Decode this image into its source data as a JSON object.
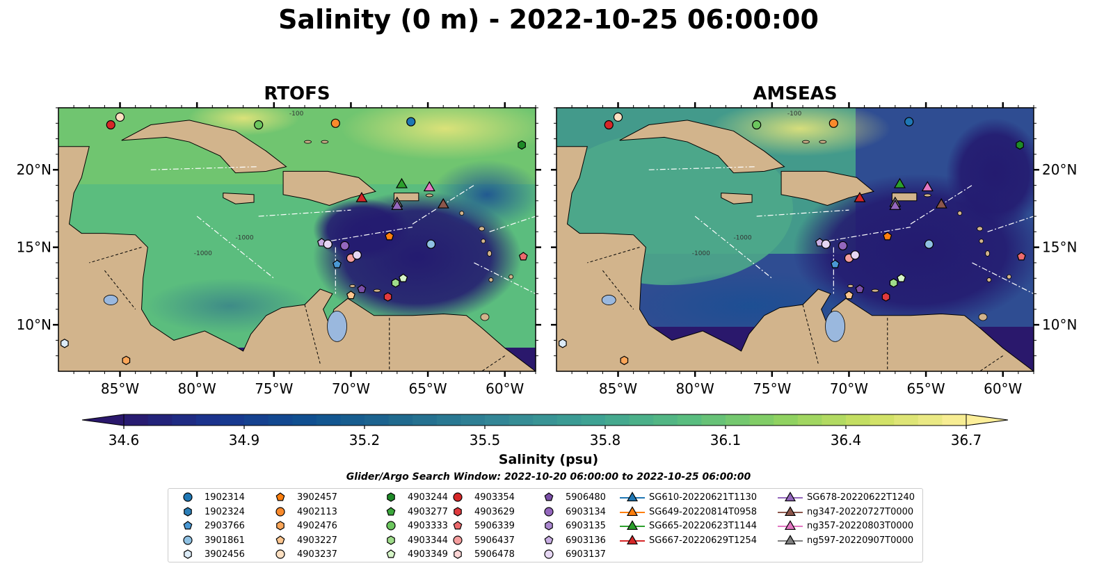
{
  "title": "Salinity (0 m) - 2022-10-25 06:00:00",
  "panels": [
    {
      "title": "RTOFS"
    },
    {
      "title": "AMSEAS"
    }
  ],
  "map": {
    "lon_range": [
      -89,
      -58
    ],
    "lat_range": [
      7,
      24
    ],
    "lon_ticks": [
      "85°W",
      "80°W",
      "75°W",
      "70°W",
      "65°W",
      "60°W"
    ],
    "lat_ticks": [
      "20°N",
      "15°N",
      "10°N"
    ],
    "contour_labels": [
      "-100",
      "-1000"
    ],
    "land_color": "#d2b48c",
    "lake_color": "#9ab8de"
  },
  "colorbar": {
    "label": "Salinity (psu)",
    "ticks": [
      "34.6",
      "34.9",
      "35.2",
      "35.5",
      "35.8",
      "36.1",
      "36.4",
      "36.7"
    ],
    "range": [
      34.6,
      36.7
    ],
    "colormap": "haline",
    "colors": [
      "#2a186c",
      "#19358f",
      "#0f5190",
      "#216b8e",
      "#338696",
      "#3ea293",
      "#57bc80",
      "#8bd161",
      "#cde062",
      "#fdef9a"
    ]
  },
  "search_window": "Glider/Argo Search Window: 2022-10-20 06:00:00 to 2022-10-25 06:00:00",
  "legend": {
    "columns": [
      [
        {
          "label": "1902314",
          "marker": "circle",
          "color": "#1f77b4"
        },
        {
          "label": "1902324",
          "marker": "hexagon",
          "color": "#2c7fb8"
        },
        {
          "label": "2903766",
          "marker": "pentagon",
          "color": "#4a98d4"
        },
        {
          "label": "3901861",
          "marker": "circle",
          "color": "#8fc1e3"
        },
        {
          "label": "3902456",
          "marker": "hexagon",
          "color": "#dcebf7"
        }
      ],
      [
        {
          "label": "3902457",
          "marker": "pentagon",
          "color": "#ff7f0e"
        },
        {
          "label": "4902113",
          "marker": "circle",
          "color": "#f98a2c"
        },
        {
          "label": "4902476",
          "marker": "hexagon",
          "color": "#fba659"
        },
        {
          "label": "4903227",
          "marker": "pentagon",
          "color": "#fdc68f"
        },
        {
          "label": "4903237",
          "marker": "circle",
          "color": "#fde0c2"
        }
      ],
      [
        {
          "label": "4903244",
          "marker": "hexagon",
          "color": "#1e8a28"
        },
        {
          "label": "4903277",
          "marker": "pentagon",
          "color": "#3ca83c"
        },
        {
          "label": "4903333",
          "marker": "circle",
          "color": "#6cc65e"
        },
        {
          "label": "4903344",
          "marker": "hexagon",
          "color": "#9fdc8a"
        },
        {
          "label": "4903349",
          "marker": "pentagon",
          "color": "#d6f5c8"
        }
      ],
      [
        {
          "label": "4903354",
          "marker": "circle",
          "color": "#d62728"
        },
        {
          "label": "4903629",
          "marker": "hexagon",
          "color": "#e03a3e"
        },
        {
          "label": "5906339",
          "marker": "pentagon",
          "color": "#ec6a6d"
        },
        {
          "label": "5906437",
          "marker": "circle",
          "color": "#f59e9e"
        },
        {
          "label": "5906478",
          "marker": "hexagon",
          "color": "#fcd5d5"
        }
      ],
      [
        {
          "label": "5906480",
          "marker": "pentagon",
          "color": "#7b4fa8"
        },
        {
          "label": "6903134",
          "marker": "circle",
          "color": "#9467bd"
        },
        {
          "label": "6903135",
          "marker": "hexagon",
          "color": "#ab88d0"
        },
        {
          "label": "6903136",
          "marker": "pentagon",
          "color": "#c8aee3"
        },
        {
          "label": "6903137",
          "marker": "circle",
          "color": "#e6d7f3"
        }
      ],
      [
        {
          "label": "SG610-20220621T1130",
          "marker": "triangle",
          "color": "#1f77b4"
        },
        {
          "label": "SG649-20220814T0958",
          "marker": "triangle",
          "color": "#ff7f0e"
        },
        {
          "label": "SG665-20220623T1144",
          "marker": "triangle",
          "color": "#2ca02c"
        },
        {
          "label": "SG667-20220629T1254",
          "marker": "triangle",
          "color": "#d62728"
        }
      ],
      [
        {
          "label": "SG678-20220622T1240",
          "marker": "triangle",
          "color": "#9467bd"
        },
        {
          "label": "ng347-20220727T0000",
          "marker": "triangle",
          "color": "#8c564b"
        },
        {
          "label": "ng357-20220803T0000",
          "marker": "triangle",
          "color": "#e377c2"
        },
        {
          "label": "ng597-20220907T0000",
          "marker": "triangle",
          "color": "#7f7f7f"
        }
      ]
    ]
  },
  "observations": [
    {
      "id": "4903354",
      "lon": -85.6,
      "lat": 22.9
    },
    {
      "id": "4903237",
      "lon": -85.0,
      "lat": 23.4
    },
    {
      "id": "4903333",
      "lon": -76.0,
      "lat": 22.9
    },
    {
      "id": "4902113",
      "lon": -71.0,
      "lat": 23.0
    },
    {
      "id": "1902314",
      "lon": -66.1,
      "lat": 23.1
    },
    {
      "id": "4903244",
      "lon": -58.9,
      "lat": 21.6
    },
    {
      "id": "3902457",
      "lon": -67.5,
      "lat": 15.7
    },
    {
      "id": "3901861",
      "lon": -64.8,
      "lat": 15.2
    },
    {
      "id": "5906339",
      "lon": -58.8,
      "lat": 14.4
    },
    {
      "id": "6903136",
      "lon": -71.9,
      "lat": 15.3
    },
    {
      "id": "6903137",
      "lon": -71.5,
      "lat": 15.2
    },
    {
      "id": "6903134",
      "lon": -70.4,
      "lat": 15.1
    },
    {
      "id": "5906437",
      "lon": -70.0,
      "lat": 14.3
    },
    {
      "id": "6903137",
      "lon": -69.6,
      "lat": 14.5
    },
    {
      "id": "2903766",
      "lon": -70.9,
      "lat": 13.9
    },
    {
      "id": "4903344",
      "lon": -67.1,
      "lat": 12.7
    },
    {
      "id": "4903349",
      "lon": -66.6,
      "lat": 13.0
    },
    {
      "id": "5906480",
      "lon": -69.3,
      "lat": 12.3
    },
    {
      "id": "4903629",
      "lon": -67.6,
      "lat": 11.8
    },
    {
      "id": "4903227",
      "lon": -70.0,
      "lat": 11.9
    },
    {
      "id": "3902456",
      "lon": -88.6,
      "lat": 8.8
    },
    {
      "id": "4902476",
      "lon": -84.6,
      "lat": 7.7
    },
    {
      "id": "SG665-20220623T1144",
      "lon": -66.7,
      "lat": 19.1
    },
    {
      "id": "ng357-20220803T0000",
      "lon": -64.9,
      "lat": 18.9
    },
    {
      "id": "SG667-20220629T1254",
      "lon": -69.3,
      "lat": 18.2
    },
    {
      "id": "ng597-20220907T0000",
      "lon": -67.0,
      "lat": 17.9
    },
    {
      "id": "SG678-20220622T1240",
      "lon": -67.0,
      "lat": 17.7
    },
    {
      "id": "ng347-20220727T0000",
      "lon": -64.0,
      "lat": 17.8
    }
  ]
}
